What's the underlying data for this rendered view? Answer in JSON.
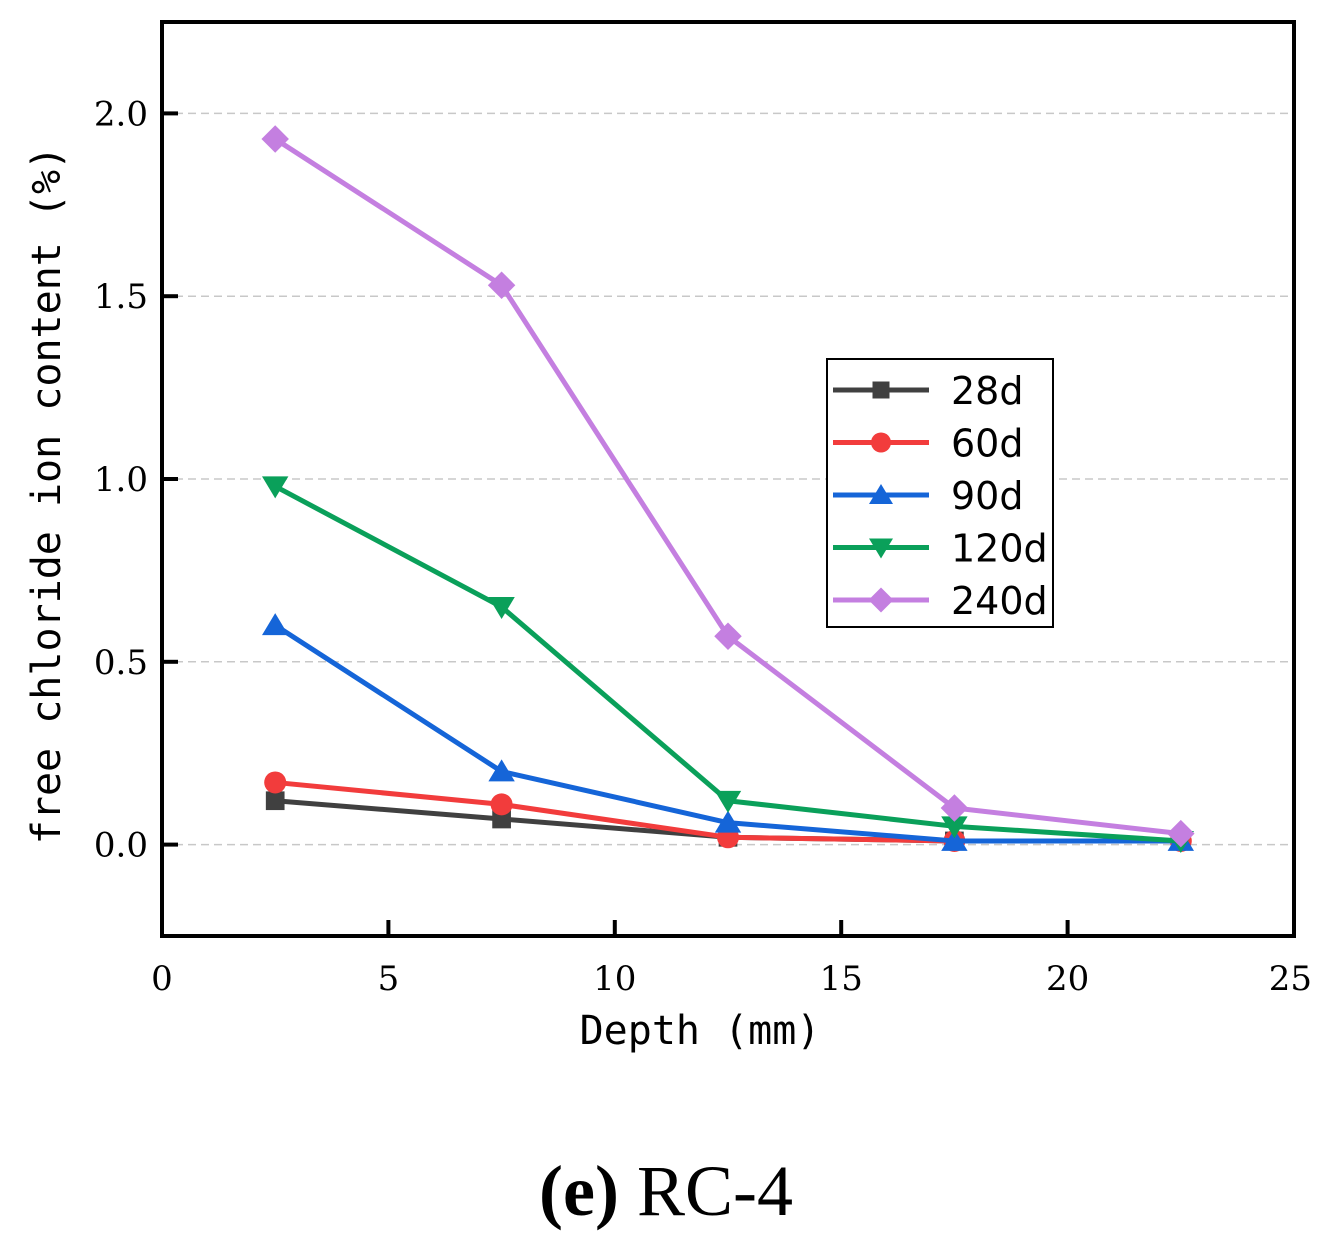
{
  "caption": {
    "letter": "(e)",
    "label": "RC-4"
  },
  "chart_data": {
    "type": "line",
    "xlabel": "Depth (mm)",
    "ylabel": "free chloride ion content (%)",
    "xlim": [
      0,
      25
    ],
    "ylim": [
      -0.25,
      2.25
    ],
    "xticks": [
      "0",
      "5",
      "10",
      "15",
      "20",
      "25"
    ],
    "yticks": [
      "0.0",
      "0.5",
      "1.0",
      "1.5",
      "2.0"
    ],
    "grid": "horizontal dashed",
    "legend_position": "center-right",
    "x": [
      2.5,
      7.5,
      12.5,
      17.5,
      22.5
    ],
    "series": [
      {
        "name": "28d",
        "values": [
          0.12,
          0.07,
          0.02,
          0.01,
          0.01
        ],
        "color": "#404040",
        "marker": "square"
      },
      {
        "name": "60d",
        "values": [
          0.17,
          0.11,
          0.02,
          0.01,
          0.01
        ],
        "color": "#f23c3c",
        "marker": "circle"
      },
      {
        "name": "90d",
        "values": [
          0.6,
          0.2,
          0.06,
          0.01,
          0.01
        ],
        "color": "#1565d8",
        "marker": "triangle-up"
      },
      {
        "name": "120d",
        "values": [
          0.98,
          0.65,
          0.12,
          0.05,
          0.01
        ],
        "color": "#0aa05a",
        "marker": "triangle-down"
      },
      {
        "name": "240d",
        "values": [
          1.93,
          1.53,
          0.57,
          0.1,
          0.03
        ],
        "color": "#c47fe0",
        "marker": "diamond"
      }
    ]
  }
}
